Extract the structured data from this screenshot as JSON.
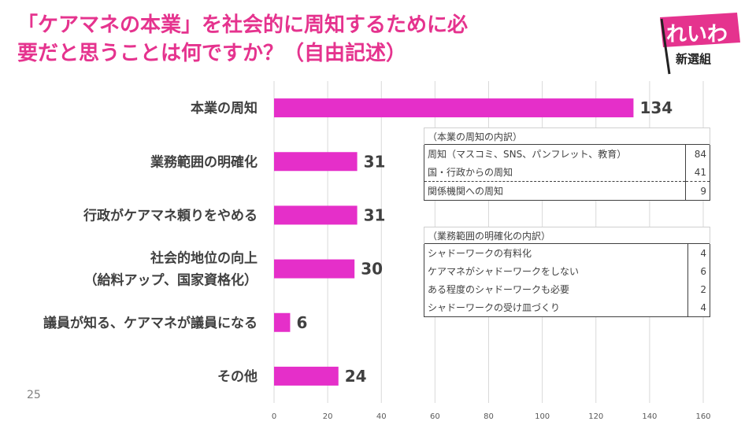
{
  "title": {
    "line1": "「ケアマネの本業」を社会的に周知するために必",
    "line2": "要だと思うことは何ですか？（自由記述）"
  },
  "logo": {
    "main": "れいわ",
    "sub": "新選組"
  },
  "page_number": "25",
  "colors": {
    "accent": "#e5338e",
    "bar": "#e52fc9"
  },
  "chart_data": {
    "type": "bar",
    "orientation": "horizontal",
    "categories": [
      "本業の周知",
      "業務範囲の明確化",
      "行政がケアマネ頼りをやめる",
      "社会的地位の向上（給料アップ、国家資格化）",
      "議員が知る、ケアマネが議員になる",
      "その他"
    ],
    "category_lines": [
      [
        "本業の周知"
      ],
      [
        "業務範囲の明確化"
      ],
      [
        "行政がケアマネ頼りをやめる"
      ],
      [
        "社会的地位の向上",
        "（給料アップ、国家資格化）"
      ],
      [
        "議員が知る、ケアマネが議員になる"
      ],
      [
        "その他"
      ]
    ],
    "values": [
      134,
      31,
      31,
      30,
      6,
      24
    ],
    "xlim": [
      0,
      160
    ],
    "xticks": [
      "0",
      "20",
      "40",
      "60",
      "80",
      "100",
      "120",
      "140",
      "160"
    ],
    "grid": true
  },
  "table1": {
    "caption": "（本業の周知の内訳）",
    "rows": [
      {
        "label": "周知（マスコミ、SNS、パンフレット、教育）",
        "value": "84"
      },
      {
        "label": "国・行政からの周知",
        "value": "41"
      },
      {
        "label": "関係機関への周知",
        "value": "9"
      }
    ]
  },
  "table2": {
    "caption": "（業務範囲の明確化の内訳）",
    "rows": [
      {
        "label": "シャドーワークの有料化",
        "value": "4"
      },
      {
        "label": "ケアマネがシャドーワークをしない",
        "value": "6"
      },
      {
        "label": "ある程度のシャドーワークも必要",
        "value": "2"
      },
      {
        "label": "シャドーワークの受け皿づくり",
        "value": "4"
      }
    ]
  }
}
